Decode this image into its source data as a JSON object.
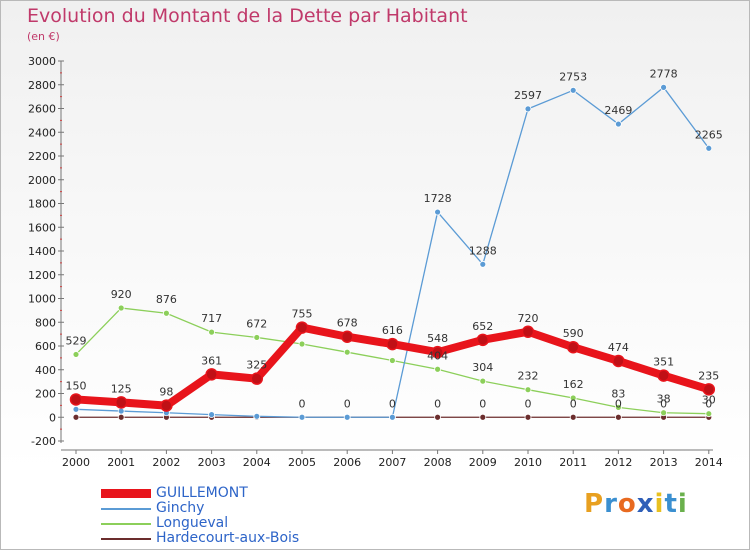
{
  "header": {
    "title": "Evolution du Montant de la Dette par Habitant",
    "subtitle": "(en €)"
  },
  "logo": {
    "text": "Proxiti"
  },
  "chart_data": {
    "type": "line",
    "title": "Evolution du Montant de la Dette par Habitant",
    "ylabel": "(en €)",
    "xlabel": "",
    "ylim": [
      -200,
      3000
    ],
    "yticks": [
      -200,
      0,
      200,
      400,
      600,
      800,
      1000,
      1200,
      1400,
      1600,
      1800,
      2000,
      2200,
      2400,
      2600,
      2800,
      3000
    ],
    "grid": false,
    "legend_position": "bottom-left",
    "categories": [
      "2000",
      "2001",
      "2002",
      "2003",
      "2004",
      "2005",
      "2006",
      "2007",
      "2008",
      "2009",
      "2010",
      "2011",
      "2012",
      "2013",
      "2014"
    ],
    "series": [
      {
        "name": "GUILLEMONT",
        "color": "#e8141b",
        "values": [
          150,
          125,
          98,
          361,
          325,
          755,
          678,
          616,
          548,
          652,
          720,
          590,
          474,
          351,
          235
        ],
        "labels": [
          "150",
          "125",
          "98",
          "361",
          "325",
          "755",
          "678",
          "616",
          "548",
          "652",
          "720",
          "590",
          "474",
          "351",
          "235"
        ]
      },
      {
        "name": "Ginchy",
        "color": "#5b9bd5",
        "values": [
          67,
          52,
          38,
          22,
          8,
          0,
          0,
          0,
          1728,
          1288,
          2597,
          2753,
          2469,
          2778,
          2265
        ],
        "labels": [
          "",
          "",
          "",
          "",
          "",
          "0",
          "0",
          "0",
          "1728",
          "1288",
          "2597",
          "2753",
          "2469",
          "2778",
          "2265"
        ]
      },
      {
        "name": "Longueval",
        "color": "#8ccf5a",
        "values": [
          529,
          920,
          876,
          717,
          672,
          617,
          548,
          478,
          404,
          304,
          232,
          162,
          83,
          38,
          30
        ],
        "labels": [
          "529",
          "920",
          "876",
          "717",
          "672",
          "",
          "",
          "",
          "404",
          "304",
          "232",
          "162",
          "83",
          "38",
          "30"
        ]
      },
      {
        "name": "Hardecourt-aux-Bois",
        "color": "#6b2d2d",
        "values": [
          0,
          0,
          0,
          0,
          0,
          0,
          0,
          0,
          0,
          0,
          0,
          0,
          0,
          0,
          0
        ],
        "labels": [
          "",
          "",
          "",
          "",
          "",
          "",
          "",
          "",
          "0",
          "0",
          "0",
          "0",
          "0",
          "0",
          "0"
        ]
      }
    ]
  }
}
